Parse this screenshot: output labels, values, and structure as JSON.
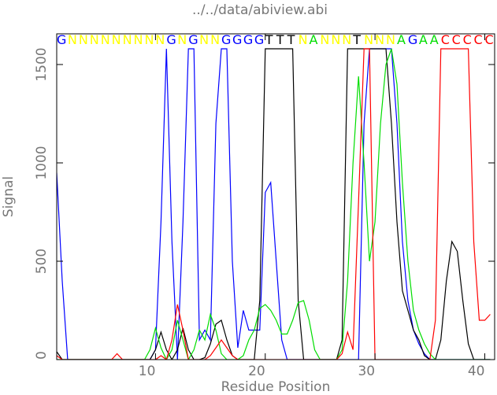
{
  "chart_data": {
    "type": "line",
    "title": "../../data/abiview.abi",
    "xlabel": "Residue Position",
    "ylabel": "Signal",
    "xlim": [
      1,
      40.9
    ],
    "xticks": [
      10,
      20,
      30,
      40
    ],
    "ylim": [
      0,
      1656
    ],
    "yticks": [
      0,
      500,
      1000,
      1500
    ],
    "x": [
      1,
      1.5,
      2,
      2.5,
      3,
      3.5,
      4,
      4.5,
      5,
      5.5,
      6,
      6.5,
      7,
      7.5,
      8,
      8.5,
      9,
      9.5,
      10,
      10.5,
      11,
      11.5,
      12,
      12.5,
      13,
      13.5,
      14,
      14.5,
      15,
      15.5,
      16,
      16.5,
      17,
      17.5,
      18,
      18.5,
      19,
      19.5,
      20,
      20.5,
      21,
      21.5,
      22,
      22.5,
      23,
      23.5,
      24,
      24.5,
      25,
      25.5,
      26,
      26.5,
      27,
      27.5,
      28,
      28.5,
      29,
      29.5,
      30,
      30.5,
      31,
      31.5,
      32,
      32.5,
      33,
      33.5,
      34,
      34.5,
      35,
      35.5,
      36,
      36.5,
      37,
      37.5,
      38,
      38.5,
      39,
      39.5,
      40,
      40.5
    ],
    "series": [
      {
        "color": "#0000ff",
        "values": [
          950,
          400,
          0,
          0,
          0,
          0,
          0,
          0,
          0,
          0,
          0,
          0,
          0,
          0,
          0,
          0,
          0,
          0,
          50,
          700,
          1580,
          600,
          0,
          700,
          1580,
          1580,
          100,
          150,
          100,
          1200,
          1580,
          1580,
          500,
          60,
          250,
          150,
          150,
          150,
          850,
          900,
          500,
          100,
          0,
          0,
          0,
          0,
          0,
          0,
          0,
          0,
          0,
          0,
          0,
          0,
          0,
          0,
          1200,
          1580,
          1580,
          1580,
          1580,
          1580,
          1200,
          600,
          300,
          150,
          80,
          30,
          0,
          0,
          0,
          0,
          0,
          0,
          0,
          0,
          0,
          0,
          0,
          0
        ]
      },
      {
        "color": "#000000",
        "values": [
          40,
          0,
          0,
          0,
          0,
          0,
          0,
          0,
          0,
          0,
          0,
          0,
          0,
          0,
          0,
          0,
          0,
          0,
          50,
          140,
          50,
          0,
          50,
          160,
          50,
          0,
          0,
          10,
          80,
          180,
          200,
          100,
          20,
          0,
          0,
          0,
          0,
          300,
          1580,
          1580,
          1580,
          1580,
          1580,
          1580,
          300,
          0,
          0,
          0,
          0,
          0,
          0,
          0,
          100,
          1580,
          1580,
          1580,
          1580,
          1580,
          1580,
          1580,
          1580,
          1200,
          700,
          350,
          250,
          150,
          100,
          20,
          0,
          0,
          100,
          400,
          600,
          550,
          300,
          80,
          0,
          0,
          0,
          0
        ]
      },
      {
        "color": "#00dd00",
        "values": [
          0,
          0,
          0,
          0,
          0,
          0,
          0,
          0,
          0,
          0,
          0,
          0,
          0,
          0,
          0,
          0,
          0,
          50,
          160,
          60,
          0,
          50,
          200,
          100,
          0,
          50,
          150,
          100,
          230,
          150,
          30,
          0,
          0,
          0,
          20,
          100,
          150,
          260,
          280,
          250,
          200,
          130,
          130,
          200,
          290,
          300,
          200,
          50,
          0,
          0,
          0,
          0,
          50,
          400,
          1000,
          1440,
          1000,
          500,
          700,
          1200,
          1500,
          1580,
          1400,
          900,
          500,
          250,
          150,
          80,
          30,
          0,
          0,
          0,
          0,
          0,
          0,
          0,
          0,
          0,
          0,
          0
        ]
      },
      {
        "color": "#ff0000",
        "values": [
          20,
          0,
          0,
          0,
          0,
          0,
          0,
          0,
          0,
          0,
          0,
          30,
          0,
          0,
          0,
          0,
          0,
          0,
          0,
          20,
          0,
          100,
          280,
          150,
          0,
          0,
          0,
          0,
          20,
          60,
          100,
          60,
          20,
          0,
          0,
          0,
          0,
          0,
          0,
          0,
          0,
          0,
          0,
          0,
          0,
          0,
          0,
          0,
          0,
          0,
          0,
          0,
          30,
          140,
          50,
          800,
          1580,
          1580,
          0,
          0,
          0,
          0,
          0,
          0,
          0,
          0,
          0,
          0,
          0,
          200,
          1580,
          1580,
          1580,
          1580,
          1580,
          1580,
          600,
          200,
          200,
          230
        ]
      }
    ],
    "calls": [
      "G",
      "N",
      "N",
      "N",
      "N",
      "N",
      "N",
      "N",
      "N",
      "N",
      "G",
      "N",
      "G",
      "N",
      "N",
      "G",
      "G",
      "G",
      "G",
      "T",
      "T",
      "T",
      "N",
      "A",
      "N",
      "N",
      "N",
      "T",
      "N",
      "N",
      "N",
      "A",
      "G",
      "A",
      "A",
      "C",
      "C",
      "C",
      "C",
      "C"
    ],
    "call_x": [
      1,
      2,
      3,
      4,
      5,
      6,
      7,
      8,
      9,
      10,
      11,
      12,
      13,
      14,
      15,
      16,
      17,
      18,
      19,
      20,
      21,
      22,
      23,
      24,
      25,
      26,
      27,
      28,
      29,
      30,
      31,
      32,
      33,
      34,
      35,
      36,
      37,
      38,
      39,
      40
    ],
    "call_colors": [
      "#0000ff",
      "#ffff00",
      "#ffff00",
      "#ffff00",
      "#ffff00",
      "#ffff00",
      "#ffff00",
      "#ffff00",
      "#ffff00",
      "#ffff00",
      "#0000ff",
      "#ffff00",
      "#0000ff",
      "#ffff00",
      "#ffff00",
      "#0000ff",
      "#0000ff",
      "#0000ff",
      "#0000ff",
      "#000000",
      "#000000",
      "#000000",
      "#ffff00",
      "#00dd00",
      "#ffff00",
      "#ffff00",
      "#ffff00",
      "#000000",
      "#ffff00",
      "#ffff00",
      "#ffff00",
      "#00dd00",
      "#0000ff",
      "#00dd00",
      "#00dd00",
      "#ff0000",
      "#ff0000",
      "#ff0000",
      "#ff0000",
      "#ff0000"
    ]
  }
}
